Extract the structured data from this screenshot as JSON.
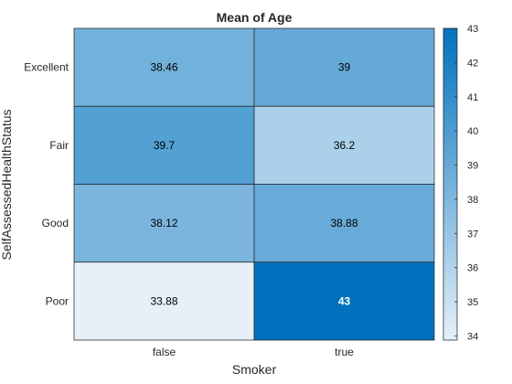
{
  "chart_data": {
    "type": "heatmap",
    "title": "Mean of Age",
    "xlabel": "Smoker",
    "ylabel": "SelfAssessedHealthStatus",
    "x_categories": [
      "false",
      "true"
    ],
    "y_categories": [
      "Excellent",
      "Fair",
      "Good",
      "Poor"
    ],
    "values": [
      [
        "38.46",
        "39"
      ],
      [
        "39.7",
        "36.2"
      ],
      [
        "38.12",
        "38.88"
      ],
      [
        "33.88",
        "43"
      ]
    ],
    "colorbar": {
      "range": [
        33.88,
        43
      ],
      "ticks": [
        34,
        35,
        36,
        37,
        38,
        39,
        40,
        41,
        42,
        43
      ],
      "colormap": "sky",
      "low_color": "#e6f0f9",
      "high_color": "#0072bd"
    }
  }
}
